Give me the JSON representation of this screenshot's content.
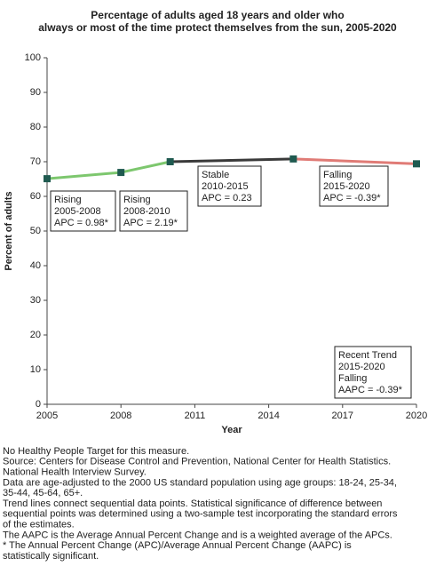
{
  "chart_data": {
    "type": "line",
    "title": [
      "Percentage of adults aged 18 years and older who",
      "always or most of the time protect themselves from the sun, 2005-2020"
    ],
    "x": [
      2005,
      2008,
      2010,
      2015,
      2020
    ],
    "values": [
      65.1,
      66.9,
      70.0,
      70.8,
      69.4
    ],
    "marker_color": "#1f5a50",
    "segment_colors": [
      "#7dc76e",
      "#7dc76e",
      "#3a3a3a",
      "#e07b76"
    ],
    "xlim": [
      2005,
      2020
    ],
    "xticks": [
      2005,
      2008,
      2011,
      2014,
      2017,
      2020
    ],
    "ylim": [
      0,
      100
    ],
    "yticks": [
      0,
      10,
      20,
      30,
      40,
      50,
      60,
      70,
      80,
      90,
      100
    ],
    "xlabel": "Year",
    "ylabel": "Percent of adults",
    "annotations": [
      {
        "lines": [
          "Rising",
          "2005-2008",
          "APC =  0.98*"
        ]
      },
      {
        "lines": [
          "Rising",
          "2008-2010",
          "APC =  2.19*"
        ]
      },
      {
        "lines": [
          "Stable",
          "2010-2015",
          "APC =  0.23"
        ]
      },
      {
        "lines": [
          "Falling",
          "2015-2020",
          "APC = -0.39*"
        ]
      },
      {
        "lines": [
          "Recent Trend",
          "2015-2020",
          "Falling",
          "AAPC = -0.39*"
        ]
      }
    ]
  },
  "notes": [
    "No Healthy People Target for this measure.",
    "Source: Centers for Disease Control and Prevention, National Center for Health Statistics.",
    "National Health Interview Survey.",
    "Data are age-adjusted to the 2000 US standard population using age groups: 18-24, 25-34,",
    "35-44, 45-64, 65+.",
    "Trend lines connect sequential data points. Statistical significance of difference between",
    "sequential points was determined using a two-sample test incorporating the standard errors",
    "of the estimates.",
    "The AAPC is the Average Annual Percent Change and is a weighted average of the APCs.",
    "* The Annual Percent Change (APC)/Average Annual Percent Change (AAPC) is",
    "statistically significant."
  ]
}
